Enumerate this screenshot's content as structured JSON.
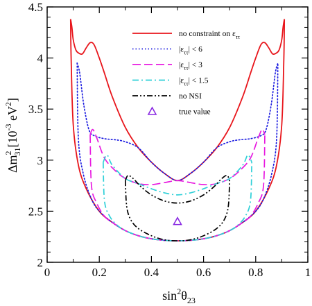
{
  "chart_data": {
    "type": "line",
    "title": "",
    "xlabel": {
      "base": "sin",
      "sup": "2",
      "theta": "θ",
      "sub": "23"
    },
    "ylabel": {
      "delta": "Δm",
      "sup": "2",
      "sub": "31",
      "bracket_open": "[10",
      "exp": "-3",
      "unit": " eV",
      "unit_sup": "2",
      "bracket_close": "]"
    },
    "xlim": [
      0,
      1
    ],
    "ylim": [
      2,
      4.5
    ],
    "x_ticks": [
      0,
      0.2,
      0.4,
      0.6,
      0.8,
      1
    ],
    "x_tick_labels": [
      "0",
      "0.2",
      "0.4",
      "0.6",
      "0.8",
      "1"
    ],
    "y_ticks": [
      2,
      2.5,
      3,
      3.5,
      4,
      4.5
    ],
    "y_tick_labels": [
      "2",
      "2.5",
      "3",
      "3.5",
      "4",
      "4.5"
    ],
    "grid": false,
    "legend_position": "top-right",
    "series": [
      {
        "name": "no constraint on ε",
        "label_sub": "ττ",
        "label_after": "",
        "label_abs": false,
        "color": "#e8151b",
        "style": "solid",
        "outer": [
          [
            0.09,
            4.38
          ],
          [
            0.095,
            4.3
          ],
          [
            0.1,
            4.18
          ],
          [
            0.11,
            4.08
          ],
          [
            0.12,
            4.05
          ],
          [
            0.135,
            4.04
          ],
          [
            0.15,
            4.1
          ],
          [
            0.165,
            4.15
          ],
          [
            0.18,
            4.13
          ],
          [
            0.2,
            4.0
          ],
          [
            0.22,
            3.85
          ],
          [
            0.25,
            3.62
          ],
          [
            0.3,
            3.32
          ],
          [
            0.35,
            3.12
          ],
          [
            0.4,
            2.98
          ],
          [
            0.45,
            2.87
          ],
          [
            0.5,
            2.8
          ],
          [
            0.55,
            2.87
          ],
          [
            0.6,
            2.98
          ],
          [
            0.65,
            3.12
          ],
          [
            0.7,
            3.32
          ],
          [
            0.75,
            3.62
          ],
          [
            0.78,
            3.85
          ],
          [
            0.8,
            4.0
          ],
          [
            0.82,
            4.13
          ],
          [
            0.835,
            4.15
          ],
          [
            0.85,
            4.1
          ],
          [
            0.865,
            4.04
          ],
          [
            0.88,
            4.05
          ],
          [
            0.89,
            4.08
          ],
          [
            0.9,
            4.18
          ],
          [
            0.905,
            4.3
          ],
          [
            0.91,
            4.38
          ]
        ],
        "inner": [
          [
            0.09,
            4.38
          ],
          [
            0.092,
            4.0
          ],
          [
            0.1,
            3.35
          ],
          [
            0.12,
            2.95
          ],
          [
            0.15,
            2.72
          ],
          [
            0.2,
            2.5
          ],
          [
            0.25,
            2.39
          ],
          [
            0.3,
            2.31
          ],
          [
            0.35,
            2.26
          ],
          [
            0.4,
            2.23
          ],
          [
            0.45,
            2.215
          ],
          [
            0.5,
            2.21
          ],
          [
            0.55,
            2.215
          ],
          [
            0.6,
            2.23
          ],
          [
            0.65,
            2.26
          ],
          [
            0.7,
            2.31
          ],
          [
            0.75,
            2.39
          ],
          [
            0.8,
            2.5
          ],
          [
            0.85,
            2.72
          ],
          [
            0.88,
            2.95
          ],
          [
            0.9,
            3.35
          ],
          [
            0.908,
            4.0
          ],
          [
            0.91,
            4.38
          ]
        ]
      },
      {
        "name": "|ε",
        "label_sub": "ττ",
        "label_after": "| < 6",
        "label_abs": true,
        "color": "#1d1de0",
        "style": "dotted",
        "outer": [
          [
            0.115,
            3.95
          ],
          [
            0.125,
            3.85
          ],
          [
            0.14,
            3.55
          ],
          [
            0.16,
            3.3
          ],
          [
            0.18,
            3.24
          ],
          [
            0.22,
            3.21
          ],
          [
            0.26,
            3.2
          ],
          [
            0.3,
            3.18
          ],
          [
            0.35,
            3.12
          ],
          [
            0.4,
            2.98
          ],
          [
            0.45,
            2.87
          ],
          [
            0.5,
            2.8
          ],
          [
            0.55,
            2.87
          ],
          [
            0.6,
            2.98
          ],
          [
            0.65,
            3.12
          ],
          [
            0.7,
            3.18
          ],
          [
            0.74,
            3.2
          ],
          [
            0.78,
            3.21
          ],
          [
            0.82,
            3.24
          ],
          [
            0.84,
            3.3
          ],
          [
            0.86,
            3.55
          ],
          [
            0.875,
            3.85
          ],
          [
            0.885,
            3.95
          ]
        ],
        "inner": [
          [
            0.115,
            3.95
          ],
          [
            0.12,
            3.2
          ],
          [
            0.14,
            2.85
          ],
          [
            0.17,
            2.62
          ],
          [
            0.2,
            2.5
          ],
          [
            0.25,
            2.39
          ],
          [
            0.3,
            2.31
          ],
          [
            0.35,
            2.26
          ],
          [
            0.4,
            2.23
          ],
          [
            0.45,
            2.215
          ],
          [
            0.5,
            2.21
          ],
          [
            0.55,
            2.215
          ],
          [
            0.6,
            2.23
          ],
          [
            0.65,
            2.26
          ],
          [
            0.7,
            2.31
          ],
          [
            0.75,
            2.39
          ],
          [
            0.8,
            2.5
          ],
          [
            0.83,
            2.62
          ],
          [
            0.86,
            2.85
          ],
          [
            0.88,
            3.2
          ],
          [
            0.885,
            3.95
          ]
        ]
      },
      {
        "name": "|ε",
        "label_sub": "ττ",
        "label_after": "| < 3",
        "label_abs": true,
        "color": "#e81ae0",
        "style": "dashed",
        "outer": [
          [
            0.165,
            3.25
          ],
          [
            0.175,
            3.3
          ],
          [
            0.19,
            3.22
          ],
          [
            0.22,
            3.02
          ],
          [
            0.26,
            2.9
          ],
          [
            0.3,
            2.82
          ],
          [
            0.35,
            2.77
          ],
          [
            0.4,
            2.76
          ],
          [
            0.45,
            2.78
          ],
          [
            0.5,
            2.8
          ],
          [
            0.55,
            2.78
          ],
          [
            0.6,
            2.76
          ],
          [
            0.65,
            2.77
          ],
          [
            0.7,
            2.82
          ],
          [
            0.74,
            2.9
          ],
          [
            0.78,
            3.02
          ],
          [
            0.81,
            3.22
          ],
          [
            0.825,
            3.3
          ],
          [
            0.835,
            3.25
          ]
        ],
        "inner": [
          [
            0.165,
            3.25
          ],
          [
            0.17,
            2.75
          ],
          [
            0.19,
            2.58
          ],
          [
            0.22,
            2.45
          ],
          [
            0.25,
            2.39
          ],
          [
            0.3,
            2.31
          ],
          [
            0.35,
            2.26
          ],
          [
            0.4,
            2.23
          ],
          [
            0.45,
            2.215
          ],
          [
            0.5,
            2.21
          ],
          [
            0.55,
            2.215
          ],
          [
            0.6,
            2.23
          ],
          [
            0.65,
            2.26
          ],
          [
            0.7,
            2.31
          ],
          [
            0.75,
            2.39
          ],
          [
            0.78,
            2.45
          ],
          [
            0.81,
            2.58
          ],
          [
            0.83,
            2.75
          ],
          [
            0.835,
            3.25
          ]
        ]
      },
      {
        "name": "|ε",
        "label_sub": "ττ",
        "label_after": "| < 1.5",
        "label_abs": true,
        "color": "#2fd0d8",
        "style": "dashdot",
        "outer": [
          [
            0.215,
            2.98
          ],
          [
            0.23,
            3.05
          ],
          [
            0.25,
            2.95
          ],
          [
            0.3,
            2.82
          ],
          [
            0.35,
            2.77
          ],
          [
            0.4,
            2.72
          ],
          [
            0.45,
            2.68
          ],
          [
            0.5,
            2.66
          ],
          [
            0.55,
            2.68
          ],
          [
            0.6,
            2.72
          ],
          [
            0.65,
            2.77
          ],
          [
            0.7,
            2.82
          ],
          [
            0.75,
            2.95
          ],
          [
            0.77,
            3.05
          ],
          [
            0.785,
            2.98
          ]
        ],
        "inner": [
          [
            0.215,
            2.98
          ],
          [
            0.22,
            2.6
          ],
          [
            0.24,
            2.45
          ],
          [
            0.27,
            2.36
          ],
          [
            0.3,
            2.31
          ],
          [
            0.35,
            2.26
          ],
          [
            0.4,
            2.23
          ],
          [
            0.45,
            2.215
          ],
          [
            0.5,
            2.21
          ],
          [
            0.55,
            2.215
          ],
          [
            0.6,
            2.23
          ],
          [
            0.65,
            2.26
          ],
          [
            0.7,
            2.31
          ],
          [
            0.73,
            2.36
          ],
          [
            0.76,
            2.45
          ],
          [
            0.78,
            2.6
          ],
          [
            0.785,
            2.98
          ]
        ]
      },
      {
        "name": "no NSI",
        "label_sub": "",
        "label_after": "",
        "label_abs": false,
        "color": "#000000",
        "style": "dashdotdot",
        "outer": [
          [
            0.3,
            2.8
          ],
          [
            0.31,
            2.85
          ],
          [
            0.33,
            2.82
          ],
          [
            0.36,
            2.74
          ],
          [
            0.4,
            2.66
          ],
          [
            0.45,
            2.6
          ],
          [
            0.5,
            2.58
          ],
          [
            0.55,
            2.6
          ],
          [
            0.6,
            2.66
          ],
          [
            0.64,
            2.74
          ],
          [
            0.67,
            2.82
          ],
          [
            0.69,
            2.85
          ],
          [
            0.7,
            2.8
          ]
        ],
        "inner": [
          [
            0.3,
            2.8
          ],
          [
            0.305,
            2.55
          ],
          [
            0.32,
            2.42
          ],
          [
            0.35,
            2.33
          ],
          [
            0.4,
            2.26
          ],
          [
            0.45,
            2.22
          ],
          [
            0.5,
            2.21
          ],
          [
            0.55,
            2.22
          ],
          [
            0.6,
            2.26
          ],
          [
            0.65,
            2.33
          ],
          [
            0.68,
            2.42
          ],
          [
            0.695,
            2.55
          ],
          [
            0.7,
            2.8
          ]
        ]
      }
    ],
    "true_value": {
      "name": "true value",
      "x": 0.5,
      "y": 2.4,
      "color": "#8a2be2",
      "marker": "triangle"
    }
  }
}
